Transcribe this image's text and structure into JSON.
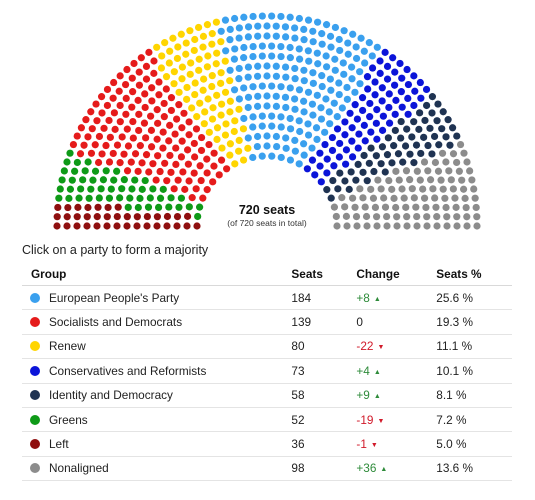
{
  "hemicycle": {
    "total_label": "720 seats",
    "sub_label": "(of 720 seats in total)"
  },
  "hint": "Click on a party to form a majority",
  "table": {
    "headers": {
      "group": "Group",
      "seats": "Seats",
      "change": "Change",
      "pct": "Seats %"
    },
    "rows": [
      {
        "group": "European People's Party",
        "color": "#3aa0ee",
        "seats": "184",
        "change": "+8",
        "direction": "up",
        "pct": "25.6 %"
      },
      {
        "group": "Socialists and Democrats",
        "color": "#e51b1b",
        "seats": "139",
        "change": "0",
        "direction": "none",
        "pct": "19.3 %"
      },
      {
        "group": "Renew",
        "color": "#ffd500",
        "seats": "80",
        "change": "-22",
        "direction": "down",
        "pct": "11.1 %"
      },
      {
        "group": "Conservatives and Reformists",
        "color": "#0b14d9",
        "seats": "73",
        "change": "+4",
        "direction": "up",
        "pct": "10.1 %"
      },
      {
        "group": "Identity and Democracy",
        "color": "#1f3352",
        "seats": "58",
        "change": "+9",
        "direction": "up",
        "pct": "8.1 %"
      },
      {
        "group": "Greens",
        "color": "#0e9a17",
        "seats": "52",
        "change": "-19",
        "direction": "down",
        "pct": "7.2 %"
      },
      {
        "group": "Left",
        "color": "#8f0f0f",
        "seats": "36",
        "change": "-1",
        "direction": "down",
        "pct": "5.0 %"
      },
      {
        "group": "Nonaligned",
        "color": "#8c8c8c",
        "seats": "98",
        "change": "+36",
        "direction": "up",
        "pct": "13.6 %"
      }
    ]
  },
  "arrow_icons": {
    "up": "▲",
    "down": "▼"
  },
  "chart_data": {
    "type": "hemicycle",
    "total": 720,
    "order_left_to_right": [
      "Left",
      "Greens",
      "Socialists and Democrats",
      "Renew",
      "European People's Party",
      "Conservatives and Reformists",
      "Identity and Democracy",
      "Nonaligned"
    ],
    "series": [
      {
        "name": "Left",
        "value": 36,
        "color": "#8f0f0f"
      },
      {
        "name": "Greens",
        "value": 52,
        "color": "#0e9a17"
      },
      {
        "name": "Socialists and Democrats",
        "value": 139,
        "color": "#e51b1b"
      },
      {
        "name": "Renew",
        "value": 80,
        "color": "#ffd500"
      },
      {
        "name": "European People's Party",
        "value": 184,
        "color": "#3aa0ee"
      },
      {
        "name": "Conservatives and Reformists",
        "value": 73,
        "color": "#0b14d9"
      },
      {
        "name": "Identity and Democracy",
        "value": 58,
        "color": "#1f3352"
      },
      {
        "name": "Nonaligned",
        "value": 98,
        "color": "#8c8c8c"
      }
    ]
  }
}
